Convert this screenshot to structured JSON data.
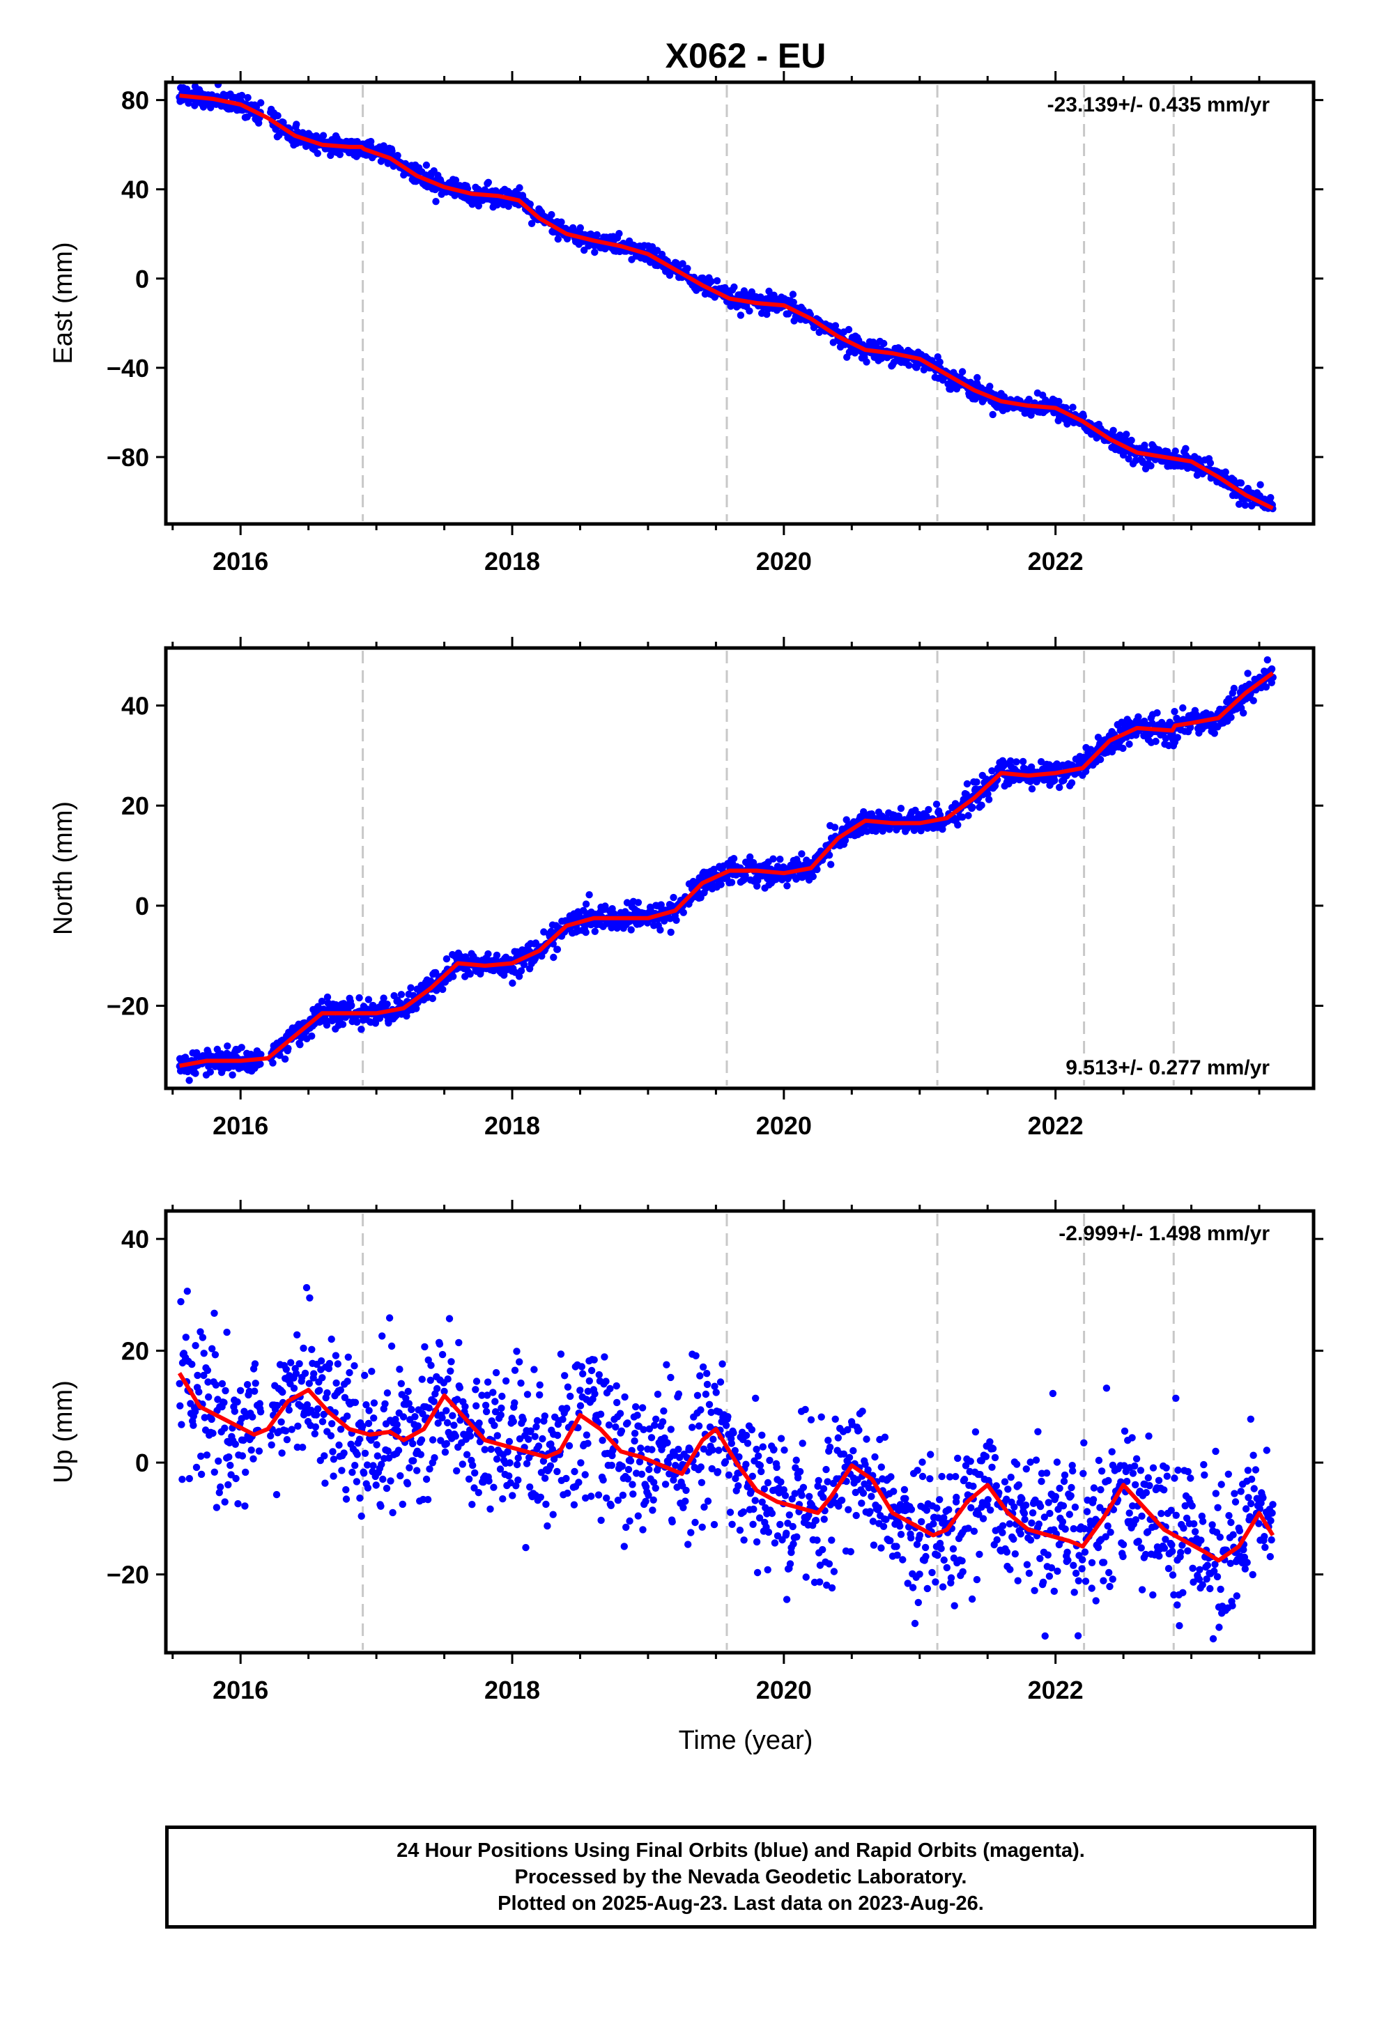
{
  "title": "X062 - EU",
  "colors": {
    "points": "#0000ff",
    "fit": "#ff0000",
    "event_lines": "#c8c8c8",
    "frame": "#000000"
  },
  "xaxis": {
    "label": "Time (year)",
    "range": [
      2015.45,
      2023.9
    ],
    "ticks": [
      2016,
      2018,
      2020,
      2022
    ],
    "tick_labels": [
      "2016",
      "2018",
      "2020",
      "2022"
    ],
    "minor_ticks": [
      2015.5,
      2016.5,
      2017,
      2017.5,
      2018.5,
      2019,
      2019.5,
      2020.5,
      2021,
      2021.5,
      2022.5,
      2023,
      2023.5
    ]
  },
  "event_lines": [
    2016.9,
    2019.58,
    2021.13,
    2022.21,
    2022.87
  ],
  "footer": {
    "line1": "24 Hour Positions Using Final Orbits (blue) and Rapid Orbits (magenta).",
    "line2": "Processed by the Nevada Geodetic Laboratory.",
    "line3": "Plotted on 2025-Aug-23. Last data on 2023-Aug-26."
  },
  "chart_data": [
    {
      "type": "scatter",
      "ylabel": "East (mm)",
      "rate_text": "-23.139+/- 0.435 mm/yr",
      "rate_position": "top-right",
      "ylim": [
        -110,
        88
      ],
      "yticks": [
        80,
        40,
        0,
        -40,
        -80
      ],
      "ytick_labels": [
        "80",
        "40",
        "0",
        "−40",
        "−80"
      ],
      "trend_rate_mm_per_yr": -23.139,
      "trend_rate_sigma": 0.435,
      "scatter_noise_mm": 2.2,
      "fit_line": {
        "x": [
          2015.55,
          2015.8,
          2016.0,
          2016.2,
          2016.4,
          2016.6,
          2016.8,
          2016.89,
          2016.91,
          2017.1,
          2017.3,
          2017.5,
          2017.7,
          2017.9,
          2018.05,
          2018.2,
          2018.4,
          2018.6,
          2018.8,
          2019.0,
          2019.2,
          2019.4,
          2019.6,
          2019.8,
          2020.0,
          2020.2,
          2020.4,
          2020.6,
          2020.8,
          2021.0,
          2021.2,
          2021.4,
          2021.6,
          2021.8,
          2022.0,
          2022.2,
          2022.4,
          2022.6,
          2022.8,
          2023.0,
          2023.2,
          2023.4,
          2023.6
        ],
        "y": [
          82,
          80.5,
          78,
          72,
          64,
          60,
          59,
          59,
          58,
          54,
          46,
          41,
          38,
          37,
          35,
          27,
          20,
          17,
          14.5,
          11,
          4,
          -3,
          -9,
          -11,
          -12,
          -18,
          -26,
          -32,
          -33.5,
          -36,
          -43,
          -50,
          -55,
          -57,
          -58,
          -64,
          -72,
          -78,
          -80,
          -82,
          -89,
          -97,
          -103
        ]
      }
    },
    {
      "type": "scatter",
      "ylabel": "North (mm)",
      "rate_text": "9.513+/- 0.277 mm/yr",
      "rate_position": "bottom-right",
      "ylim": [
        -36.5,
        51.5
      ],
      "yticks": [
        40,
        20,
        0,
        -20
      ],
      "ytick_labels": [
        "40",
        "20",
        "0",
        "−20"
      ],
      "trend_rate_mm_per_yr": 9.513,
      "trend_rate_sigma": 0.277,
      "scatter_noise_mm": 1.3,
      "fit_line": {
        "x": [
          2015.55,
          2015.75,
          2016.0,
          2016.2,
          2016.4,
          2016.6,
          2016.8,
          2017.0,
          2017.2,
          2017.4,
          2017.6,
          2017.8,
          2018.0,
          2018.2,
          2018.4,
          2018.6,
          2018.8,
          2019.0,
          2019.2,
          2019.4,
          2019.6,
          2019.8,
          2020.0,
          2020.2,
          2020.4,
          2020.6,
          2020.8,
          2021.0,
          2021.2,
          2021.4,
          2021.6,
          2021.8,
          2022.0,
          2022.2,
          2022.4,
          2022.6,
          2022.86,
          2022.88,
          2023.0,
          2023.2,
          2023.4,
          2023.6
        ],
        "y": [
          -32,
          -31,
          -31,
          -30.5,
          -26,
          -21.5,
          -21.5,
          -21.5,
          -20.5,
          -16.5,
          -11.5,
          -12,
          -11.5,
          -9,
          -4,
          -2.5,
          -2.5,
          -2.5,
          -1,
          4.5,
          7,
          7,
          6.5,
          7.5,
          13.5,
          17,
          16.5,
          16.5,
          17.5,
          21.5,
          26.5,
          26,
          26.5,
          27.5,
          33,
          35.5,
          35,
          36,
          36.5,
          37.5,
          42.5,
          46.5
        ]
      }
    },
    {
      "type": "scatter",
      "ylabel": "Up (mm)",
      "rate_text": "-2.999+/- 1.498 mm/yr",
      "rate_position": "top-right",
      "ylim": [
        -34,
        45
      ],
      "yticks": [
        40,
        20,
        0,
        -20
      ],
      "ytick_labels": [
        "40",
        "20",
        "0",
        "−20"
      ],
      "trend_rate_mm_per_yr": -2.999,
      "trend_rate_sigma": 1.498,
      "scatter_noise_mm": 6.5,
      "fit_line": {
        "x": [
          2015.55,
          2015.7,
          2015.9,
          2016.1,
          2016.2,
          2016.35,
          2016.5,
          2016.65,
          2016.8,
          2016.95,
          2017.1,
          2017.2,
          2017.35,
          2017.5,
          2017.65,
          2017.8,
          2017.95,
          2018.1,
          2018.25,
          2018.35,
          2018.5,
          2018.65,
          2018.8,
          2018.95,
          2019.1,
          2019.25,
          2019.4,
          2019.5,
          2019.65,
          2019.8,
          2019.95,
          2020.1,
          2020.25,
          2020.35,
          2020.5,
          2020.65,
          2020.8,
          2020.95,
          2021.1,
          2021.2,
          2021.35,
          2021.5,
          2021.65,
          2021.8,
          2021.95,
          2022.1,
          2022.2,
          2022.35,
          2022.5,
          2022.65,
          2022.8,
          2022.95,
          2023.1,
          2023.2,
          2023.35,
          2023.5,
          2023.6
        ],
        "y": [
          16,
          10,
          7.5,
          5,
          6,
          11,
          13,
          9,
          6,
          5,
          5.5,
          4,
          6,
          12,
          8,
          4,
          3,
          2,
          1,
          2,
          8.5,
          6,
          2,
          1,
          -0.5,
          -2,
          4,
          6,
          0,
          -5,
          -7,
          -8,
          -9,
          -6,
          -0.5,
          -3,
          -9,
          -11,
          -13,
          -12,
          -7,
          -4,
          -9,
          -12,
          -13,
          -14,
          -15,
          -10,
          -4,
          -8,
          -12,
          -14,
          -16,
          -17.5,
          -15,
          -9,
          -13
        ]
      }
    }
  ]
}
